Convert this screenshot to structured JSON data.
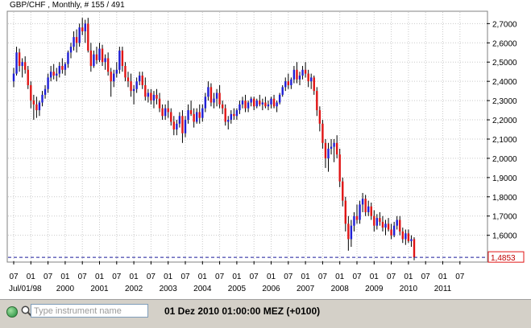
{
  "chart_data": {
    "type": "candlestick",
    "title": "GBP/CHF , Monthly, # 155 / 491",
    "symbol": "GBP/CHF",
    "timeframe": "Monthly",
    "ylim": [
      1.465,
      2.76
    ],
    "y_ticks": [
      "2,7000",
      "2,6000",
      "2,5000",
      "2,4000",
      "2,3000",
      "2,2000",
      "2,1000",
      "2,0000",
      "1,9000",
      "1,8000",
      "1,7000",
      "1,6000"
    ],
    "y_tick_values": [
      2.7,
      2.6,
      2.5,
      2.4,
      2.3,
      2.2,
      2.1,
      2.0,
      1.9,
      1.8,
      1.7,
      1.6
    ],
    "current_price": 1.4853,
    "current_price_label": "1,4853",
    "x_ticks": [
      "07",
      "01",
      "07",
      "01",
      "07",
      "01",
      "07",
      "01",
      "07",
      "01",
      "07",
      "01",
      "07",
      "01",
      "07",
      "01",
      "07",
      "01",
      "07",
      "01",
      "07",
      "01",
      "07",
      "01",
      "07",
      "01",
      "07"
    ],
    "x_tick_dates": [
      "1998-07",
      "1999-01",
      "1999-07",
      "2000-01",
      "2000-07",
      "2001-01",
      "2001-07",
      "2002-01",
      "2002-07",
      "2003-01",
      "2003-07",
      "2004-01",
      "2004-07",
      "2005-01",
      "2005-07",
      "2006-01",
      "2006-07",
      "2007-01",
      "2007-07",
      "2008-01",
      "2008-07",
      "2009-01",
      "2009-07",
      "2010-01",
      "2010-07",
      "2011-01",
      "2011-07"
    ],
    "x_year_labels": [
      "Jul/01/98",
      "2000",
      "2001",
      "2002",
      "2003",
      "2004",
      "2005",
      "2006",
      "2007",
      "2008",
      "2009",
      "2010",
      "2011"
    ],
    "x_year_dates": [
      "1998-07",
      "2000-01",
      "2001-01",
      "2002-01",
      "2003-01",
      "2004-01",
      "2005-01",
      "2006-01",
      "2007-01",
      "2008-01",
      "2009-01",
      "2010-01",
      "2011-01"
    ],
    "first_month": "1998-07",
    "up_color": "#1f1fd6",
    "down_color": "#e01515",
    "grid_color": "#c9c9c9",
    "candles": [
      [
        2.4,
        2.47,
        2.37,
        2.44
      ],
      [
        2.44,
        2.58,
        2.43,
        2.55
      ],
      [
        2.55,
        2.57,
        2.45,
        2.48
      ],
      [
        2.48,
        2.52,
        2.42,
        2.5
      ],
      [
        2.5,
        2.53,
        2.44,
        2.46
      ],
      [
        2.46,
        2.48,
        2.36,
        2.38
      ],
      [
        2.38,
        2.4,
        2.26,
        2.3
      ],
      [
        2.3,
        2.33,
        2.2,
        2.28
      ],
      [
        2.28,
        2.32,
        2.21,
        2.25
      ],
      [
        2.25,
        2.3,
        2.22,
        2.29
      ],
      [
        2.29,
        2.35,
        2.27,
        2.33
      ],
      [
        2.33,
        2.38,
        2.31,
        2.36
      ],
      [
        2.36,
        2.44,
        2.34,
        2.42
      ],
      [
        2.42,
        2.48,
        2.4,
        2.45
      ],
      [
        2.45,
        2.49,
        2.41,
        2.43
      ],
      [
        2.43,
        2.47,
        2.4,
        2.44
      ],
      [
        2.44,
        2.5,
        2.42,
        2.48
      ],
      [
        2.48,
        2.52,
        2.44,
        2.46
      ],
      [
        2.46,
        2.5,
        2.43,
        2.49
      ],
      [
        2.49,
        2.56,
        2.47,
        2.55
      ],
      [
        2.55,
        2.6,
        2.52,
        2.58
      ],
      [
        2.58,
        2.66,
        2.56,
        2.63
      ],
      [
        2.63,
        2.67,
        2.55,
        2.6
      ],
      [
        2.6,
        2.7,
        2.58,
        2.68
      ],
      [
        2.68,
        2.73,
        2.64,
        2.66
      ],
      [
        2.66,
        2.72,
        2.6,
        2.7
      ],
      [
        2.7,
        2.73,
        2.55,
        2.56
      ],
      [
        2.56,
        2.6,
        2.45,
        2.48
      ],
      [
        2.48,
        2.56,
        2.47,
        2.54
      ],
      [
        2.54,
        2.58,
        2.49,
        2.51
      ],
      [
        2.51,
        2.6,
        2.5,
        2.57
      ],
      [
        2.57,
        2.59,
        2.48,
        2.5
      ],
      [
        2.5,
        2.54,
        2.46,
        2.52
      ],
      [
        2.52,
        2.55,
        2.43,
        2.45
      ],
      [
        2.45,
        2.47,
        2.32,
        2.4
      ],
      [
        2.4,
        2.46,
        2.37,
        2.44
      ],
      [
        2.44,
        2.5,
        2.42,
        2.46
      ],
      [
        2.46,
        2.58,
        2.44,
        2.56
      ],
      [
        2.56,
        2.58,
        2.45,
        2.48
      ],
      [
        2.48,
        2.5,
        2.4,
        2.42
      ],
      [
        2.42,
        2.45,
        2.37,
        2.4
      ],
      [
        2.4,
        2.44,
        2.32,
        2.35
      ],
      [
        2.35,
        2.38,
        2.28,
        2.36
      ],
      [
        2.36,
        2.42,
        2.34,
        2.4
      ],
      [
        2.4,
        2.45,
        2.38,
        2.43
      ],
      [
        2.43,
        2.45,
        2.36,
        2.38
      ],
      [
        2.38,
        2.42,
        2.3,
        2.32
      ],
      [
        2.32,
        2.36,
        2.29,
        2.34
      ],
      [
        2.34,
        2.36,
        2.28,
        2.3
      ],
      [
        2.3,
        2.35,
        2.26,
        2.33
      ],
      [
        2.33,
        2.36,
        2.28,
        2.31
      ],
      [
        2.31,
        2.34,
        2.24,
        2.26
      ],
      [
        2.26,
        2.28,
        2.2,
        2.22
      ],
      [
        2.22,
        2.28,
        2.2,
        2.26
      ],
      [
        2.26,
        2.3,
        2.21,
        2.24
      ],
      [
        2.24,
        2.26,
        2.17,
        2.19
      ],
      [
        2.19,
        2.22,
        2.12,
        2.15
      ],
      [
        2.15,
        2.2,
        2.12,
        2.18
      ],
      [
        2.18,
        2.24,
        2.16,
        2.22
      ],
      [
        2.22,
        2.25,
        2.08,
        2.13
      ],
      [
        2.13,
        2.22,
        2.11,
        2.2
      ],
      [
        2.2,
        2.28,
        2.18,
        2.25
      ],
      [
        2.25,
        2.3,
        2.22,
        2.23
      ],
      [
        2.23,
        2.26,
        2.16,
        2.19
      ],
      [
        2.19,
        2.26,
        2.18,
        2.24
      ],
      [
        2.24,
        2.28,
        2.18,
        2.21
      ],
      [
        2.21,
        2.28,
        2.19,
        2.26
      ],
      [
        2.26,
        2.34,
        2.24,
        2.32
      ],
      [
        2.32,
        2.4,
        2.3,
        2.37
      ],
      [
        2.37,
        2.39,
        2.27,
        2.29
      ],
      [
        2.29,
        2.34,
        2.26,
        2.31
      ],
      [
        2.31,
        2.36,
        2.27,
        2.34
      ],
      [
        2.34,
        2.38,
        2.26,
        2.28
      ],
      [
        2.28,
        2.3,
        2.23,
        2.26
      ],
      [
        2.26,
        2.28,
        2.17,
        2.19
      ],
      [
        2.19,
        2.22,
        2.15,
        2.2
      ],
      [
        2.2,
        2.25,
        2.18,
        2.23
      ],
      [
        2.23,
        2.26,
        2.2,
        2.22
      ],
      [
        2.22,
        2.26,
        2.2,
        2.25
      ],
      [
        2.25,
        2.3,
        2.23,
        2.28
      ],
      [
        2.28,
        2.32,
        2.26,
        2.3
      ],
      [
        2.3,
        2.33,
        2.24,
        2.26
      ],
      [
        2.26,
        2.3,
        2.24,
        2.29
      ],
      [
        2.29,
        2.32,
        2.27,
        2.31
      ],
      [
        2.31,
        2.32,
        2.25,
        2.27
      ],
      [
        2.27,
        2.31,
        2.26,
        2.3
      ],
      [
        2.3,
        2.33,
        2.27,
        2.28
      ],
      [
        2.28,
        2.31,
        2.25,
        2.29
      ],
      [
        2.29,
        2.32,
        2.26,
        2.27
      ],
      [
        2.27,
        2.3,
        2.25,
        2.28
      ],
      [
        2.28,
        2.32,
        2.26,
        2.31
      ],
      [
        2.31,
        2.33,
        2.26,
        2.27
      ],
      [
        2.27,
        2.3,
        2.24,
        2.29
      ],
      [
        2.29,
        2.34,
        2.28,
        2.33
      ],
      [
        2.33,
        2.38,
        2.32,
        2.37
      ],
      [
        2.37,
        2.42,
        2.35,
        2.4
      ],
      [
        2.4,
        2.44,
        2.36,
        2.38
      ],
      [
        2.38,
        2.42,
        2.36,
        2.41
      ],
      [
        2.41,
        2.48,
        2.39,
        2.46
      ],
      [
        2.46,
        2.5,
        2.39,
        2.41
      ],
      [
        2.41,
        2.45,
        2.38,
        2.43
      ],
      [
        2.43,
        2.48,
        2.41,
        2.46
      ],
      [
        2.46,
        2.5,
        2.42,
        2.44
      ],
      [
        2.44,
        2.46,
        2.37,
        2.4
      ],
      [
        2.4,
        2.44,
        2.36,
        2.42
      ],
      [
        2.42,
        2.43,
        2.33,
        2.35
      ],
      [
        2.35,
        2.37,
        2.22,
        2.25
      ],
      [
        2.25,
        2.27,
        2.14,
        2.18
      ],
      [
        2.18,
        2.2,
        2.05,
        2.08
      ],
      [
        2.08,
        2.1,
        1.95,
        2.0
      ],
      [
        2.0,
        2.08,
        1.93,
        2.05
      ],
      [
        2.05,
        2.1,
        2.02,
        2.06
      ],
      [
        2.06,
        2.1,
        1.98,
        2.08
      ],
      [
        2.08,
        2.12,
        2.0,
        2.02
      ],
      [
        2.02,
        2.05,
        1.85,
        1.88
      ],
      [
        1.88,
        1.9,
        1.75,
        1.78
      ],
      [
        1.78,
        1.8,
        1.62,
        1.66
      ],
      [
        1.66,
        1.7,
        1.52,
        1.58
      ],
      [
        1.58,
        1.68,
        1.54,
        1.65
      ],
      [
        1.65,
        1.72,
        1.62,
        1.7
      ],
      [
        1.7,
        1.76,
        1.66,
        1.68
      ],
      [
        1.68,
        1.78,
        1.66,
        1.76
      ],
      [
        1.76,
        1.82,
        1.72,
        1.79
      ],
      [
        1.79,
        1.81,
        1.7,
        1.72
      ],
      [
        1.72,
        1.78,
        1.7,
        1.75
      ],
      [
        1.75,
        1.77,
        1.68,
        1.7
      ],
      [
        1.7,
        1.73,
        1.62,
        1.65
      ],
      [
        1.65,
        1.71,
        1.63,
        1.69
      ],
      [
        1.69,
        1.72,
        1.65,
        1.67
      ],
      [
        1.67,
        1.7,
        1.62,
        1.64
      ],
      [
        1.64,
        1.68,
        1.6,
        1.66
      ],
      [
        1.66,
        1.69,
        1.62,
        1.63
      ],
      [
        1.63,
        1.66,
        1.58,
        1.6
      ],
      [
        1.6,
        1.67,
        1.59,
        1.65
      ],
      [
        1.65,
        1.7,
        1.63,
        1.68
      ],
      [
        1.68,
        1.7,
        1.6,
        1.62
      ],
      [
        1.62,
        1.64,
        1.56,
        1.58
      ],
      [
        1.58,
        1.63,
        1.55,
        1.61
      ],
      [
        1.61,
        1.63,
        1.56,
        1.57
      ],
      [
        1.57,
        1.6,
        1.54,
        1.58
      ],
      [
        1.58,
        1.59,
        1.47,
        1.4853
      ]
    ]
  },
  "status_bar": {
    "search_placeholder": "Type instrument name",
    "datetime": "01 Dez 2010 01:00:00  MEZ (+0100)"
  }
}
